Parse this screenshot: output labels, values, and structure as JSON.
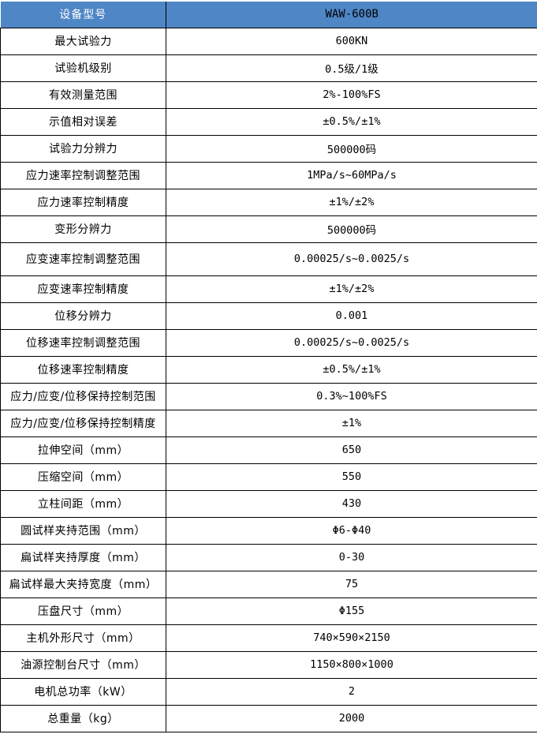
{
  "colors": {
    "header_bg": "#4E86C6",
    "header_param_text": "#FFFFFF",
    "header_value_text": "#000000",
    "grid_border": "#000000",
    "cell_text": "#000000",
    "page_bg": "#FFFFFF"
  },
  "table": {
    "header": {
      "param": "设备型号",
      "value": "WAW-600B"
    },
    "rows": [
      {
        "param": "最大试验力",
        "value": "600KN"
      },
      {
        "param": "试验机级别",
        "value": "0.5级/1级"
      },
      {
        "param": "有效测量范围",
        "value": "2%-100%FS"
      },
      {
        "param": "示值相对误差",
        "value": "±0.5%/±1%"
      },
      {
        "param": "试验力分辨力",
        "value": "500000码"
      },
      {
        "param": "应力速率控制调整范围",
        "value": "1MPa/s~60MPa/s"
      },
      {
        "param": "应力速率控制精度",
        "value": "±1%/±2%"
      },
      {
        "param": "变形分辨力",
        "value": "500000码"
      },
      {
        "param": "应变速率控制调整范围",
        "value": "0.00025/s~0.0025/s",
        "tall": true
      },
      {
        "param": "应变速率控制精度",
        "value": "±1%/±2%"
      },
      {
        "param": "位移分辨力",
        "value": "0.001"
      },
      {
        "param": "位移速率控制调整范围",
        "value": "0.00025/s~0.0025/s"
      },
      {
        "param": "位移速率控制精度",
        "value": "±0.5%/±1%"
      },
      {
        "param": "应力/应变/位移保持控制范围",
        "value": "0.3%~100%FS"
      },
      {
        "param": "应力/应变/位移保持控制精度",
        "value": "±1%"
      },
      {
        "param": "拉伸空间（mm）",
        "value": "650"
      },
      {
        "param": "压缩空间（mm）",
        "value": "550"
      },
      {
        "param": "立柱间距（mm）",
        "value": "430"
      },
      {
        "param": "圆试样夹持范围（mm）",
        "value": "Φ6-Φ40"
      },
      {
        "param": "扁试样夹持厚度（mm）",
        "value": "0-30"
      },
      {
        "param": "扁试样最大夹持宽度（mm）",
        "value": "75"
      },
      {
        "param": "压盘尺寸（mm）",
        "value": "Φ155"
      },
      {
        "param": "主机外形尺寸（mm）",
        "value": "740×590×2150"
      },
      {
        "param": "油源控制台尺寸（mm）",
        "value": "1150×800×1000"
      },
      {
        "param": "电机总功率（kW）",
        "value": "2"
      },
      {
        "param": "总重量（kg）",
        "value": "2000"
      }
    ]
  }
}
